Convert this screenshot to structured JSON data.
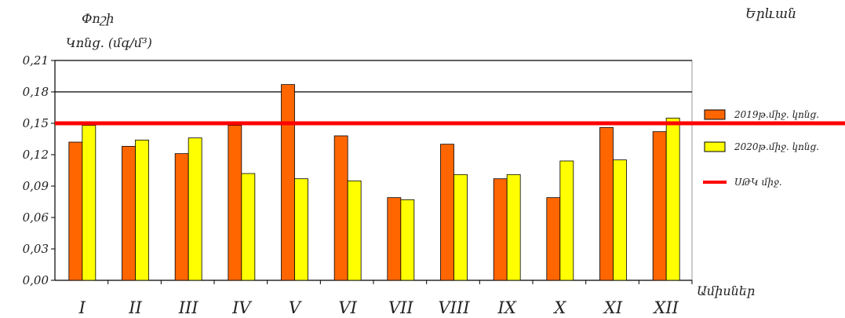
{
  "chart_data": {
    "type": "bar",
    "title": "Երևան",
    "ylabel_line1": "Փոշի",
    "ylabel_line2": "Կոնց. (մգ/մ³)",
    "xlabel": "Ամիսներ",
    "categories": [
      "I",
      "II",
      "III",
      "IV",
      "V",
      "VI",
      "VII",
      "VIII",
      "IX",
      "X",
      "XI",
      "XII"
    ],
    "series": [
      {
        "name": "2019թ.միջ. կոնց.",
        "color": "#ff6600",
        "values": [
          0.132,
          0.128,
          0.121,
          0.148,
          0.187,
          0.138,
          0.079,
          0.13,
          0.097,
          0.079,
          0.146,
          0.142
        ]
      },
      {
        "name": "2020թ.միջ. կոնց.",
        "color": "#ffff00",
        "values": [
          0.148,
          0.134,
          0.136,
          0.102,
          0.097,
          0.095,
          0.077,
          0.101,
          0.101,
          0.114,
          0.115,
          0.155
        ]
      }
    ],
    "reference_line": {
      "name": "ՍԹԿ միջ.",
      "value": 0.15,
      "color": "#ff0000"
    },
    "yticks": [
      "0,00",
      "0,03",
      "0,06",
      "0,09",
      "0,12",
      "0,15",
      "0,18",
      "0,21"
    ],
    "ylim": [
      0,
      0.21
    ],
    "grid": "horizontal at 0,18 and 0,21",
    "legend_position": "right"
  }
}
